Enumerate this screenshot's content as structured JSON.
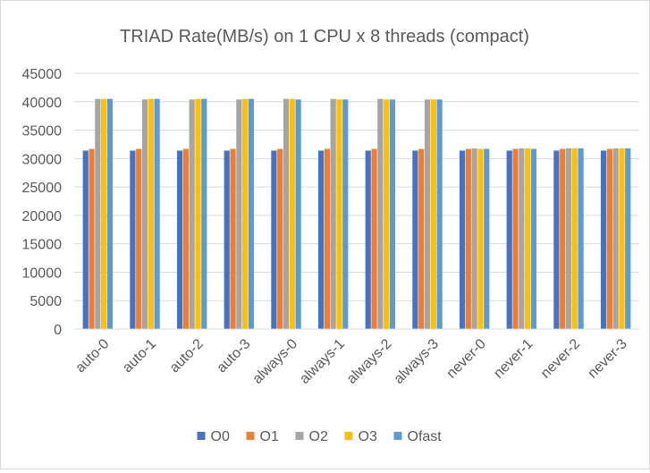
{
  "chart_data": {
    "type": "bar",
    "title": "TRIAD Rate(MB/s) on 1 CPU x 8 threads (compact)",
    "xlabel": "",
    "ylabel": "",
    "ylim": [
      0,
      45000
    ],
    "yticks": [
      0,
      5000,
      10000,
      15000,
      20000,
      25000,
      30000,
      35000,
      40000,
      45000
    ],
    "grid": true,
    "legend_position": "bottom",
    "categories": [
      "auto-0",
      "auto-1",
      "auto-2",
      "auto-3",
      "always-0",
      "always-1",
      "always-2",
      "always-3",
      "never-0",
      "never-1",
      "never-2",
      "never-3"
    ],
    "series": [
      {
        "name": "O0",
        "color": "#4472C4",
        "values": [
          31400,
          31400,
          31400,
          31400,
          31400,
          31400,
          31400,
          31400,
          31400,
          31400,
          31400,
          31400
        ]
      },
      {
        "name": "O1",
        "color": "#ED7D31",
        "values": [
          31700,
          31700,
          31700,
          31700,
          31700,
          31700,
          31700,
          31700,
          31700,
          31700,
          31700,
          31700
        ]
      },
      {
        "name": "O2",
        "color": "#A5A5A5",
        "values": [
          40500,
          40400,
          40400,
          40400,
          40500,
          40500,
          40500,
          40400,
          31800,
          31800,
          31800,
          31800
        ]
      },
      {
        "name": "O3",
        "color": "#FFC000",
        "values": [
          40500,
          40500,
          40500,
          40500,
          40500,
          40400,
          40400,
          40400,
          31700,
          31800,
          31800,
          31800
        ]
      },
      {
        "name": "Ofast",
        "color": "#5B9BD5",
        "values": [
          40500,
          40500,
          40500,
          40500,
          40400,
          40400,
          40400,
          40400,
          31700,
          31700,
          31800,
          31800
        ]
      }
    ]
  }
}
